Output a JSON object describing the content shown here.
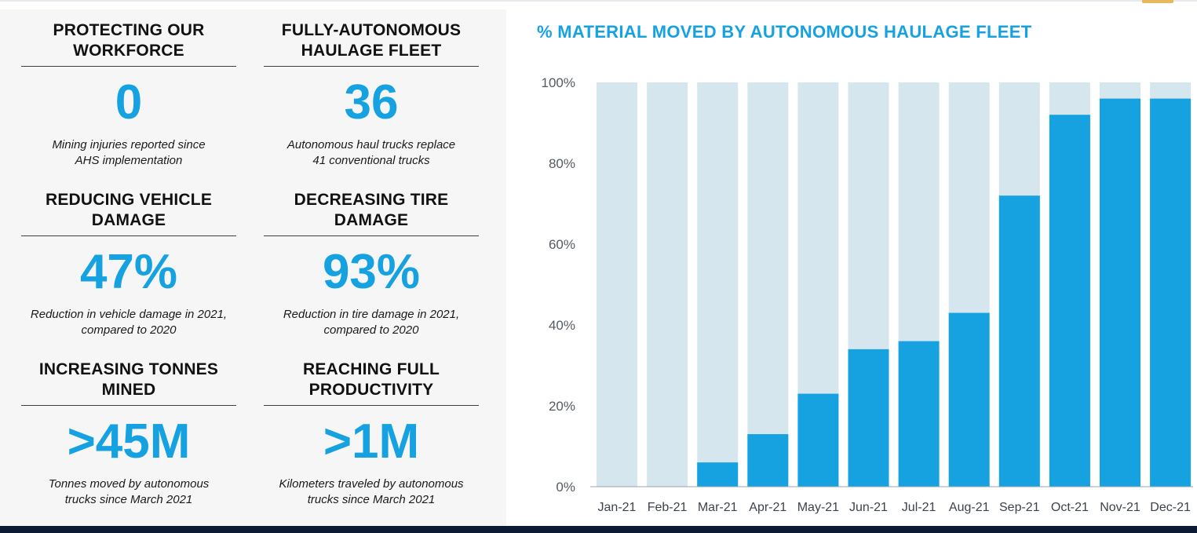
{
  "colors": {
    "accent": "#16a2e0",
    "bar_track": "#d6e6ee",
    "heading": "#111111",
    "footer": "#0c1a33"
  },
  "tiles": [
    {
      "heading": "PROTECTING OUR WORKFORCE",
      "value": "0",
      "caption": "Mining injuries reported since\nAHS implementation"
    },
    {
      "heading": "FULLY-AUTONOMOUS HAULAGE FLEET",
      "value": "36",
      "caption": "Autonomous haul trucks replace\n41 conventional trucks"
    },
    {
      "heading": "REDUCING VEHICLE DAMAGE",
      "value": "47%",
      "caption": "Reduction in vehicle damage in 2021,\ncompared to 2020"
    },
    {
      "heading": "DECREASING TIRE DAMAGE",
      "value": "93%",
      "caption": "Reduction in tire damage in 2021,\ncompared to 2020"
    },
    {
      "heading": "INCREASING TONNES MINED",
      "value": ">45M",
      "caption": "Tonnes moved by autonomous\ntrucks since March 2021"
    },
    {
      "heading": "REACHING FULL PRODUCTIVITY",
      "value": ">1M",
      "caption": "Kilometers traveled by autonomous\ntrucks since March 2021"
    }
  ],
  "chart_data": {
    "type": "bar",
    "title": "% MATERIAL MOVED BY AUTONOMOUS HAULAGE FLEET",
    "categories": [
      "Jan-21",
      "Feb-21",
      "Mar-21",
      "Apr-21",
      "May-21",
      "Jun-21",
      "Jul-21",
      "Aug-21",
      "Sep-21",
      "Oct-21",
      "Nov-21",
      "Dec-21"
    ],
    "values": [
      0,
      0,
      6,
      13,
      23,
      34,
      36,
      43,
      72,
      92,
      96,
      96
    ],
    "unit": "%",
    "ylim": [
      0,
      100
    ],
    "yticks": [
      0,
      20,
      40,
      60,
      80,
      100
    ],
    "ytick_labels": [
      "0%",
      "20%",
      "40%",
      "60%",
      "80%",
      "100%"
    ],
    "background_track_to": 100,
    "grid": false,
    "legend": "none"
  }
}
